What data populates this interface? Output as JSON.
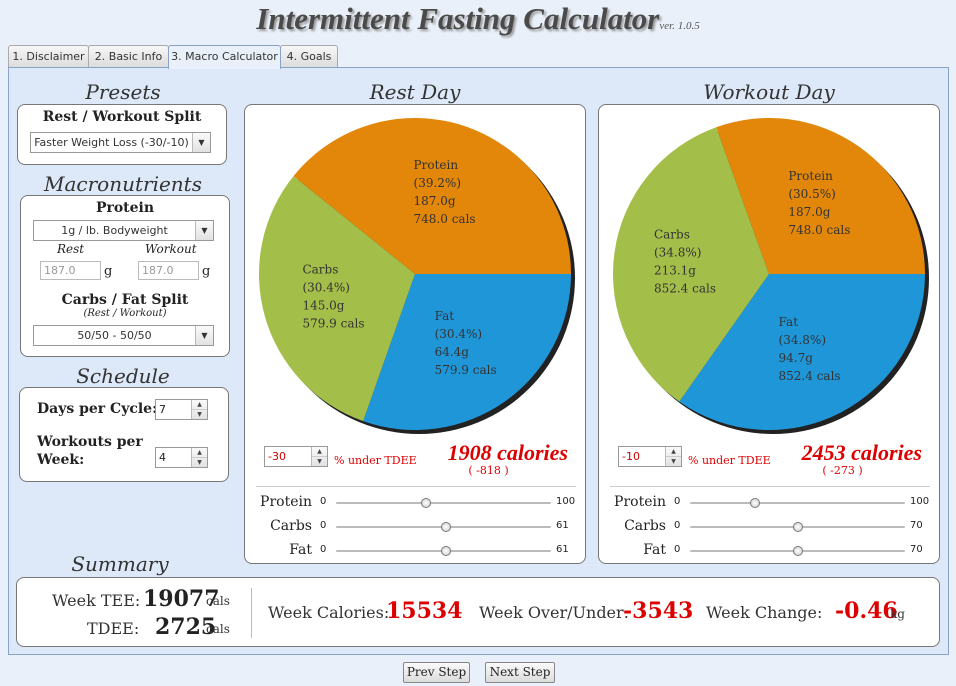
{
  "app": {
    "title": "Intermittent Fasting Calculator",
    "version": "ver. 1.0.5"
  },
  "tabs": [
    {
      "label": "1. Disclaimer",
      "active": false
    },
    {
      "label": "2. Basic Info",
      "active": false
    },
    {
      "label": "3. Macro Calculator",
      "active": true
    },
    {
      "label": "4. Goals",
      "active": false
    }
  ],
  "presets": {
    "heading": "Presets",
    "split_label": "Rest / Workout Split",
    "split_value": "Faster Weight Loss (-30/-10)"
  },
  "macros": {
    "heading": "Macronutrients",
    "protein_label": "Protein",
    "protein_value": "1g / lb. Bodyweight",
    "rest_label": "Rest",
    "workout_label": "Workout",
    "rest_protein": "187.0",
    "workout_protein": "187.0",
    "unit_g": "g",
    "carbfat_label": "Carbs / Fat Split",
    "carbfat_sub": "(Rest / Workout)",
    "carbfat_value": "50/50 - 50/50"
  },
  "schedule": {
    "heading": "Schedule",
    "days_label": "Days per Cycle:",
    "days_value": "7",
    "workouts_label_1": "Workouts per",
    "workouts_label_2": "Week:",
    "workouts_value": "4"
  },
  "rest_day": {
    "heading": "Rest Day",
    "pct_input": "-30",
    "pct_suffix": "% under TDEE",
    "calories": "1908 calories",
    "delta": "( -818 )",
    "sliders": [
      {
        "label": "Protein",
        "min": "0",
        "max": "100",
        "fraction": 0.42
      },
      {
        "label": "Carbs",
        "min": "0",
        "max": "61",
        "fraction": 0.51
      },
      {
        "label": "Fat",
        "min": "0",
        "max": "61",
        "fraction": 0.51
      }
    ]
  },
  "workout_day": {
    "heading": "Workout Day",
    "pct_input": "-10",
    "pct_suffix": "% under TDEE",
    "calories": "2453 calories",
    "delta": "( -273 )",
    "sliders": [
      {
        "label": "Protein",
        "min": "0",
        "max": "100",
        "fraction": 0.3
      },
      {
        "label": "Carbs",
        "min": "0",
        "max": "70",
        "fraction": 0.5
      },
      {
        "label": "Fat",
        "min": "0",
        "max": "70",
        "fraction": 0.5
      }
    ]
  },
  "chart_data": [
    {
      "type": "pie",
      "title": "Rest Day",
      "slices": [
        {
          "name": "Protein",
          "pct": "(39.2%)",
          "grams": "187.0g",
          "cals": "748.0 cals",
          "value": 748.0,
          "color": "#e2870a"
        },
        {
          "name": "Fat",
          "pct": "(30.4%)",
          "grams": "64.4g",
          "cals": "579.9 cals",
          "value": 579.9,
          "color": "#1f96d8"
        },
        {
          "name": "Carbs",
          "pct": "(30.4%)",
          "grams": "145.0g",
          "cals": "579.9 cals",
          "value": 579.9,
          "color": "#a4be4a"
        }
      ]
    },
    {
      "type": "pie",
      "title": "Workout Day",
      "slices": [
        {
          "name": "Protein",
          "pct": "(30.5%)",
          "grams": "187.0g",
          "cals": "748.0 cals",
          "value": 748.0,
          "color": "#e2870a"
        },
        {
          "name": "Fat",
          "pct": "(34.8%)",
          "grams": "94.7g",
          "cals": "852.4 cals",
          "value": 852.4,
          "color": "#1f96d8"
        },
        {
          "name": "Carbs",
          "pct": "(34.8%)",
          "grams": "213.1g",
          "cals": "852.4 cals",
          "value": 852.4,
          "color": "#a4be4a"
        }
      ]
    }
  ],
  "summary": {
    "heading": "Summary",
    "week_tee_label": "Week TEE:",
    "week_tee_value": "19077",
    "tdee_label": "TDEE:",
    "tdee_value": "2725",
    "cals_unit": "cals",
    "week_cal_label": "Week Calories:",
    "week_cal_value": "15534",
    "over_under_label": "Week Over/Under:",
    "over_under_value": "-3543",
    "change_label": "Week Change:",
    "change_value": "-0.46",
    "change_unit": "kg"
  },
  "nav": {
    "prev": "Prev Step",
    "next": "Next Step"
  }
}
